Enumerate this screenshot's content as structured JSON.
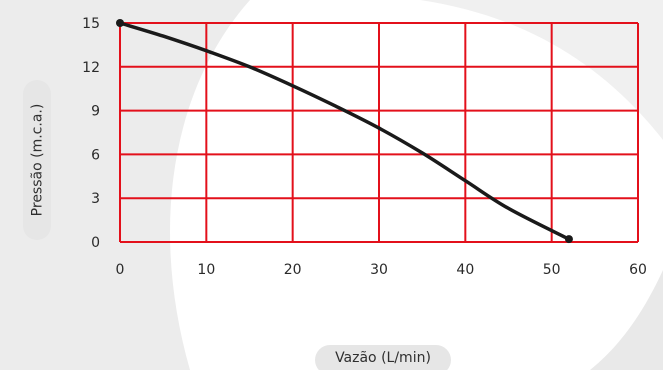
{
  "chart_data": {
    "type": "line",
    "title": "",
    "xlabel": "Vazão (L/min)",
    "ylabel": "Pressão (m.c.a.)",
    "xlim": [
      0,
      60
    ],
    "ylim": [
      0,
      15
    ],
    "x_ticks": [
      "0",
      "10",
      "20",
      "30",
      "40",
      "50",
      "60"
    ],
    "y_ticks": [
      "0",
      "3",
      "6",
      "9",
      "12",
      "15"
    ],
    "grid": true,
    "grid_color": "#e3101b",
    "line_color": "#1a1a1a",
    "series": [
      {
        "x": [
          0,
          5,
          10,
          15,
          20,
          25,
          30,
          35,
          40,
          45,
          52
        ],
        "y": [
          15,
          14.1,
          13.1,
          12,
          10.7,
          9.3,
          7.8,
          6.1,
          4.2,
          2.3,
          0.2
        ]
      }
    ],
    "markers": [
      {
        "x": 0,
        "y": 15
      },
      {
        "x": 52,
        "y": 0.2
      }
    ]
  }
}
